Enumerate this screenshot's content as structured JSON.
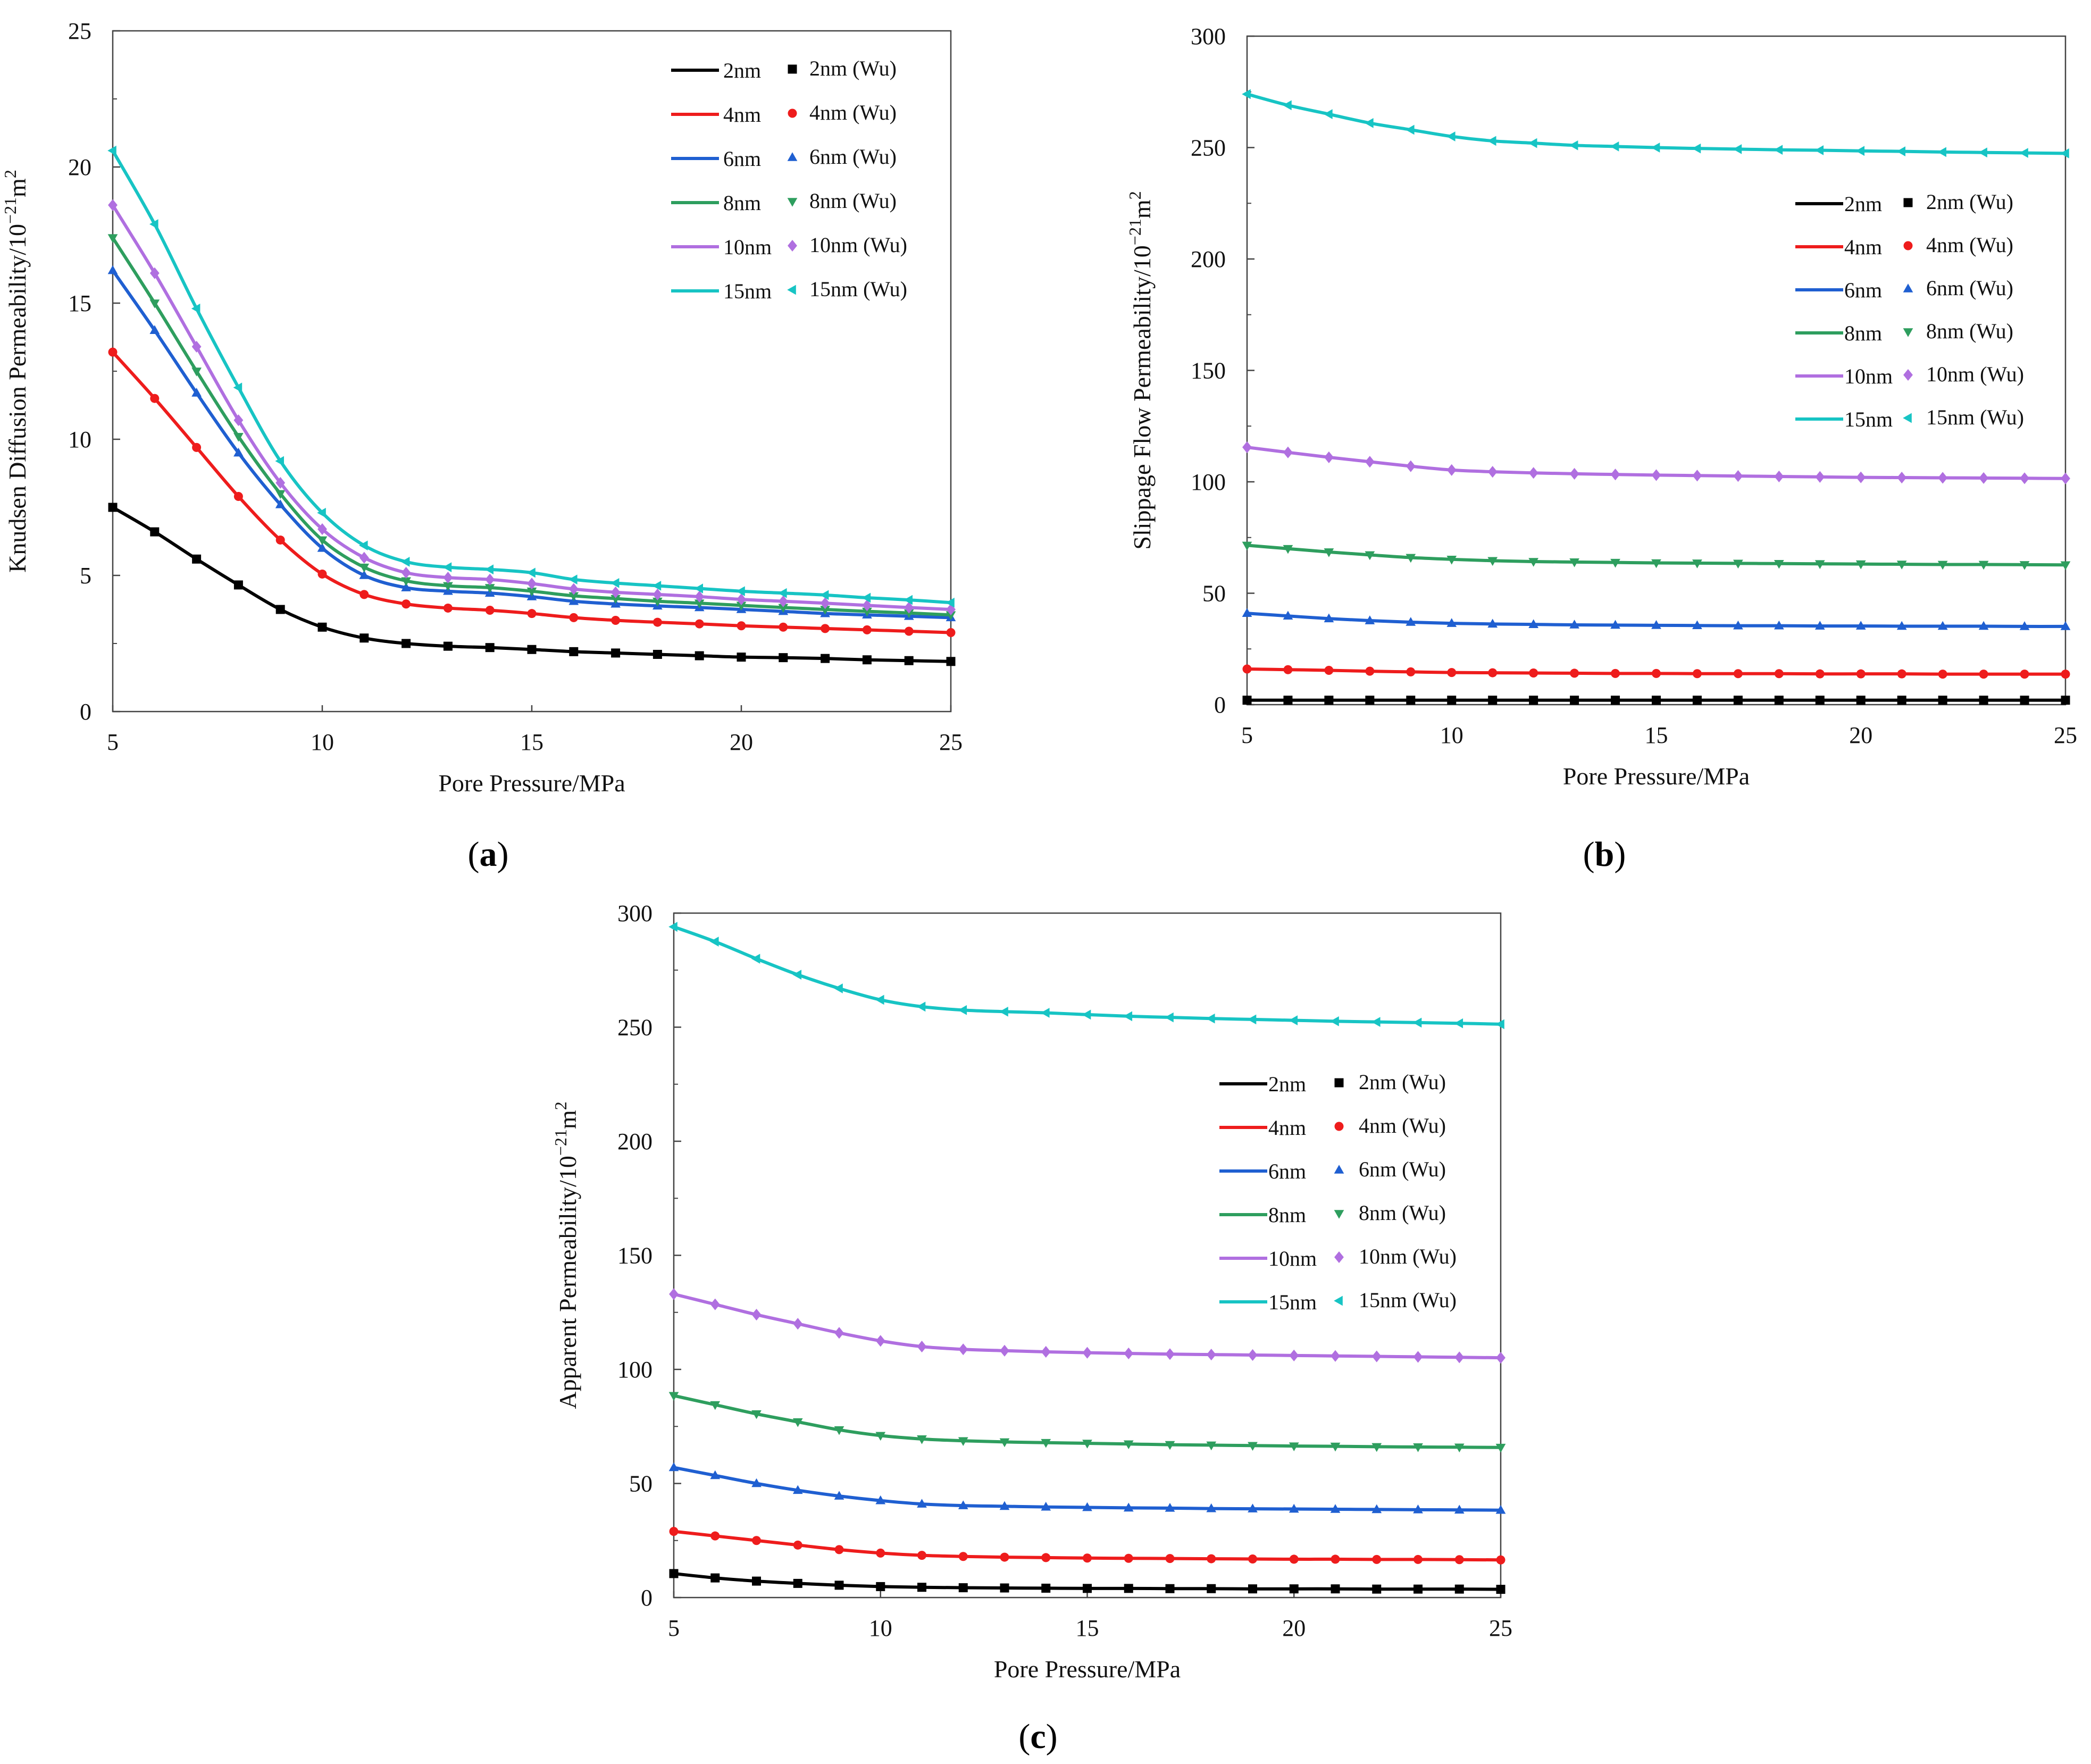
{
  "figure_captions": {
    "a_open": "(",
    "a_letter": "a",
    "a_close": ")",
    "b_open": "(",
    "b_letter": "b",
    "b_close": ")",
    "c_open": "(",
    "c_letter": "c",
    "c_close": ")"
  },
  "legend": {
    "series_names": [
      "2nm",
      "4nm",
      "6nm",
      "8nm",
      "10nm",
      "15nm"
    ],
    "marker_names": [
      "2nm  (Wu)",
      "4nm (Wu)",
      "6nm (Wu)",
      "8nm (Wu)",
      "10nm (Wu)",
      "15nm (Wu)"
    ],
    "colors": [
      "#000000",
      "#ee1c1c",
      "#1f5fd1",
      "#2e9e5e",
      "#b06fe0",
      "#17c4c4"
    ],
    "marker_shapes": [
      "square",
      "circle",
      "triangle-up",
      "triangle-down",
      "diamond",
      "triangle-left"
    ]
  },
  "chart_data": [
    {
      "id": "a",
      "type": "line",
      "title": "",
      "xlabel": "Pore Pressure/MPa",
      "ylabel": "Knudsen Diffusion Permeability/10",
      "ylabel_sup1": "−21",
      "ylabel_mid": "m",
      "ylabel_sup2": "2",
      "xlim": [
        5,
        25
      ],
      "ylim": [
        0,
        25
      ],
      "xticks": [
        5,
        10,
        15,
        20,
        25
      ],
      "yticks": [
        0,
        5,
        10,
        15,
        20,
        25
      ],
      "legend_position": "top-right",
      "x": [
        5,
        6,
        7,
        8,
        9,
        10,
        11,
        12,
        13,
        14,
        15,
        16,
        17,
        18,
        19,
        20,
        21,
        22,
        23,
        24,
        25
      ],
      "series": [
        {
          "name": "2nm",
          "values": [
            7.5,
            6.6,
            5.6,
            4.65,
            3.75,
            3.1,
            2.7,
            2.5,
            2.4,
            2.35,
            2.28,
            2.2,
            2.15,
            2.1,
            2.05,
            2.0,
            1.98,
            1.95,
            1.9,
            1.87,
            1.84
          ]
        },
        {
          "name": "4nm",
          "values": [
            13.2,
            11.5,
            9.7,
            7.9,
            6.3,
            5.05,
            4.3,
            3.95,
            3.8,
            3.72,
            3.6,
            3.45,
            3.35,
            3.28,
            3.22,
            3.15,
            3.1,
            3.05,
            3.0,
            2.95,
            2.9
          ]
        },
        {
          "name": "6nm",
          "values": [
            16.2,
            14.0,
            11.7,
            9.5,
            7.6,
            6.0,
            5.0,
            4.55,
            4.42,
            4.35,
            4.22,
            4.05,
            3.95,
            3.88,
            3.82,
            3.75,
            3.68,
            3.6,
            3.55,
            3.5,
            3.45
          ]
        },
        {
          "name": "8nm",
          "values": [
            17.4,
            15.0,
            12.5,
            10.1,
            8.0,
            6.3,
            5.3,
            4.8,
            4.62,
            4.55,
            4.42,
            4.25,
            4.15,
            4.05,
            3.98,
            3.9,
            3.82,
            3.75,
            3.68,
            3.62,
            3.55
          ]
        },
        {
          "name": "10nm",
          "values": [
            18.6,
            16.1,
            13.4,
            10.7,
            8.4,
            6.7,
            5.65,
            5.1,
            4.92,
            4.85,
            4.7,
            4.5,
            4.38,
            4.3,
            4.22,
            4.12,
            4.05,
            3.98,
            3.9,
            3.82,
            3.75
          ]
        },
        {
          "name": "15nm",
          "values": [
            20.6,
            17.9,
            14.8,
            11.9,
            9.2,
            7.3,
            6.1,
            5.5,
            5.3,
            5.22,
            5.1,
            4.85,
            4.72,
            4.62,
            4.52,
            4.42,
            4.35,
            4.28,
            4.18,
            4.1,
            4.0
          ]
        }
      ]
    },
    {
      "id": "b",
      "type": "line",
      "title": "",
      "xlabel": "Pore Pressure/MPa",
      "ylabel": "Slippage Flow Permeability/10",
      "ylabel_sup1": "−21",
      "ylabel_mid": "m",
      "ylabel_sup2": "2",
      "xlim": [
        5,
        25
      ],
      "ylim": [
        0,
        300
      ],
      "xticks": [
        5,
        10,
        15,
        20,
        25
      ],
      "yticks": [
        0,
        50,
        100,
        150,
        200,
        250,
        300
      ],
      "legend_position": "right",
      "x": [
        5,
        6,
        7,
        8,
        9,
        10,
        11,
        12,
        13,
        14,
        15,
        16,
        17,
        18,
        19,
        20,
        21,
        22,
        23,
        24,
        25
      ],
      "series": [
        {
          "name": "2nm",
          "values": [
            2,
            2,
            2,
            2,
            2,
            2,
            2,
            2,
            2,
            2,
            2,
            2,
            2,
            2,
            2,
            2,
            2,
            2,
            2,
            2,
            2
          ]
        },
        {
          "name": "4nm",
          "values": [
            16,
            15.7,
            15.4,
            15.0,
            14.7,
            14.4,
            14.3,
            14.2,
            14.1,
            14.0,
            14.0,
            13.9,
            13.9,
            13.9,
            13.8,
            13.8,
            13.8,
            13.7,
            13.7,
            13.7,
            13.7
          ]
        },
        {
          "name": "6nm",
          "values": [
            41,
            39.8,
            38.6,
            37.7,
            37.0,
            36.5,
            36.2,
            36.0,
            35.8,
            35.7,
            35.6,
            35.5,
            35.4,
            35.4,
            35.3,
            35.3,
            35.2,
            35.2,
            35.2,
            35.1,
            35.1
          ]
        },
        {
          "name": "8nm",
          "values": [
            71.5,
            70.0,
            68.5,
            67.2,
            66.0,
            65.2,
            64.6,
            64.2,
            64.0,
            63.8,
            63.6,
            63.5,
            63.4,
            63.3,
            63.2,
            63.1,
            63.0,
            62.9,
            62.9,
            62.8,
            62.7
          ]
        },
        {
          "name": "10nm",
          "values": [
            115.5,
            113.2,
            111.0,
            109.0,
            107.0,
            105.3,
            104.5,
            104.0,
            103.6,
            103.3,
            103.0,
            102.8,
            102.6,
            102.4,
            102.2,
            102.0,
            101.9,
            101.8,
            101.7,
            101.6,
            101.5
          ]
        },
        {
          "name": "15nm",
          "values": [
            274,
            269,
            265,
            261,
            258,
            255,
            253,
            252,
            251,
            250.5,
            250,
            249.6,
            249.3,
            249,
            248.8,
            248.5,
            248.3,
            248,
            247.8,
            247.6,
            247.4
          ]
        }
      ]
    },
    {
      "id": "c",
      "type": "line",
      "title": "",
      "xlabel": "Pore Pressure/MPa",
      "ylabel": "Apparent Permeability/10",
      "ylabel_sup1": "−21",
      "ylabel_mid": "m",
      "ylabel_sup2": "2",
      "xlim": [
        5,
        25
      ],
      "ylim": [
        0,
        300
      ],
      "xticks": [
        5,
        10,
        15,
        20,
        25
      ],
      "yticks": [
        0,
        50,
        100,
        150,
        200,
        250,
        300
      ],
      "legend_position": "right",
      "x": [
        5,
        6,
        7,
        8,
        9,
        10,
        11,
        12,
        13,
        14,
        15,
        16,
        17,
        18,
        19,
        20,
        21,
        22,
        23,
        24,
        25
      ],
      "series": [
        {
          "name": "2nm",
          "values": [
            10.5,
            8.6,
            7.2,
            6.2,
            5.4,
            4.8,
            4.5,
            4.3,
            4.2,
            4.1,
            4.0,
            4.0,
            3.9,
            3.9,
            3.8,
            3.8,
            3.8,
            3.7,
            3.7,
            3.7,
            3.6
          ]
        },
        {
          "name": "4nm",
          "values": [
            29,
            27,
            25,
            23,
            21,
            19.5,
            18.5,
            18.0,
            17.7,
            17.5,
            17.3,
            17.2,
            17.1,
            17.0,
            16.9,
            16.8,
            16.8,
            16.7,
            16.7,
            16.6,
            16.5
          ]
        },
        {
          "name": "6nm",
          "values": [
            57,
            53.5,
            50,
            47,
            44.5,
            42.5,
            41,
            40.3,
            40.0,
            39.7,
            39.5,
            39.3,
            39.2,
            39.0,
            38.9,
            38.8,
            38.7,
            38.6,
            38.5,
            38.4,
            38.3
          ]
        },
        {
          "name": "8nm",
          "values": [
            88.5,
            84.5,
            80.5,
            77,
            73.5,
            71,
            69.5,
            68.7,
            68.2,
            67.9,
            67.6,
            67.3,
            67.0,
            66.8,
            66.6,
            66.4,
            66.3,
            66.1,
            66.0,
            65.9,
            65.8
          ]
        },
        {
          "name": "10nm",
          "values": [
            133,
            128.5,
            124,
            120,
            116,
            112.5,
            110,
            108.8,
            108.2,
            107.7,
            107.3,
            107.0,
            106.7,
            106.5,
            106.3,
            106.1,
            105.9,
            105.7,
            105.5,
            105.3,
            105.1
          ]
        },
        {
          "name": "15nm",
          "values": [
            294,
            287.5,
            280,
            273,
            267,
            262,
            259,
            257.5,
            256.8,
            256.3,
            255.5,
            254.8,
            254.3,
            253.8,
            253.4,
            253.0,
            252.6,
            252.3,
            252.0,
            251.7,
            251.3
          ]
        }
      ]
    }
  ]
}
